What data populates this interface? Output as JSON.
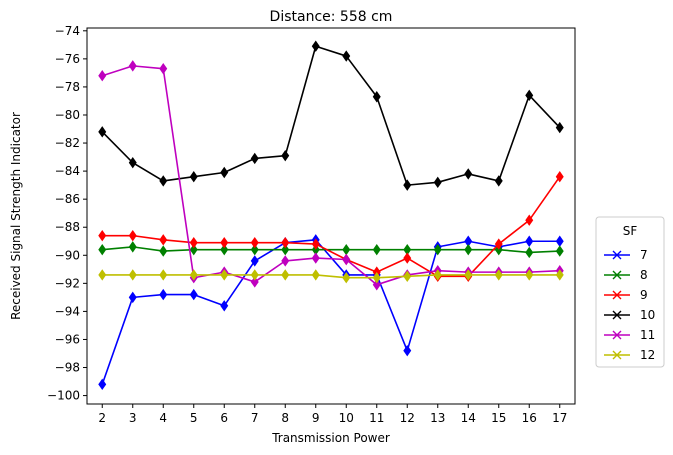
{
  "chart_data": {
    "type": "line",
    "title": "Distance: 558 cm",
    "xlabel": "Transmission Power",
    "ylabel": "Received Signal Strength Indicator",
    "x": [
      2,
      3,
      4,
      5,
      6,
      7,
      8,
      9,
      10,
      11,
      12,
      13,
      14,
      15,
      16,
      17
    ],
    "xlim": [
      1.5,
      17.5
    ],
    "ylim": [
      -100.6,
      -73.8
    ],
    "yticks": [
      -100,
      -98,
      -96,
      -94,
      -92,
      -90,
      -88,
      -86,
      -84,
      -82,
      -80,
      -78,
      -76,
      -74
    ],
    "grid": false,
    "legend": {
      "title": "SF",
      "placement": "right"
    },
    "series": [
      {
        "name": "7",
        "color": "#0000ff",
        "values": [
          -99.2,
          -93.0,
          -92.8,
          -92.8,
          -93.6,
          -90.4,
          -89.1,
          -88.9,
          -91.4,
          -91.4,
          -96.8,
          -89.4,
          -89.0,
          -89.4,
          -89.0,
          -89.0
        ]
      },
      {
        "name": "8",
        "color": "#008000",
        "values": [
          -89.6,
          -89.4,
          -89.7,
          -89.6,
          -89.6,
          -89.6,
          -89.6,
          -89.6,
          -89.6,
          -89.6,
          -89.6,
          -89.6,
          -89.6,
          -89.6,
          -89.8,
          -89.7
        ]
      },
      {
        "name": "9",
        "color": "#ff0000",
        "values": [
          -88.6,
          -88.6,
          -88.9,
          -89.1,
          -89.1,
          -89.1,
          -89.1,
          -89.2,
          -90.3,
          -91.2,
          -90.2,
          -91.5,
          -91.5,
          -89.2,
          -87.5,
          -84.4
        ]
      },
      {
        "name": "10",
        "color": "#000000",
        "values": [
          -81.2,
          -83.4,
          -84.7,
          -84.4,
          -84.1,
          -83.1,
          -82.9,
          -75.1,
          -75.8,
          -78.7,
          -85.0,
          -84.8,
          -84.2,
          -84.7,
          -78.6,
          -80.9
        ]
      },
      {
        "name": "11",
        "color": "#bf00bf",
        "values": [
          -77.2,
          -76.5,
          -76.7,
          -91.6,
          -91.2,
          -91.9,
          -90.4,
          -90.2,
          -90.3,
          -92.1,
          -91.4,
          -91.1,
          -91.2,
          -91.2,
          -91.2,
          -91.1
        ]
      },
      {
        "name": "12",
        "color": "#bfbf00",
        "values": [
          -91.4,
          -91.4,
          -91.4,
          -91.4,
          -91.4,
          -91.4,
          -91.4,
          -91.4,
          -91.6,
          -91.6,
          -91.5,
          -91.4,
          -91.4,
          -91.4,
          -91.4,
          -91.4
        ]
      }
    ]
  }
}
